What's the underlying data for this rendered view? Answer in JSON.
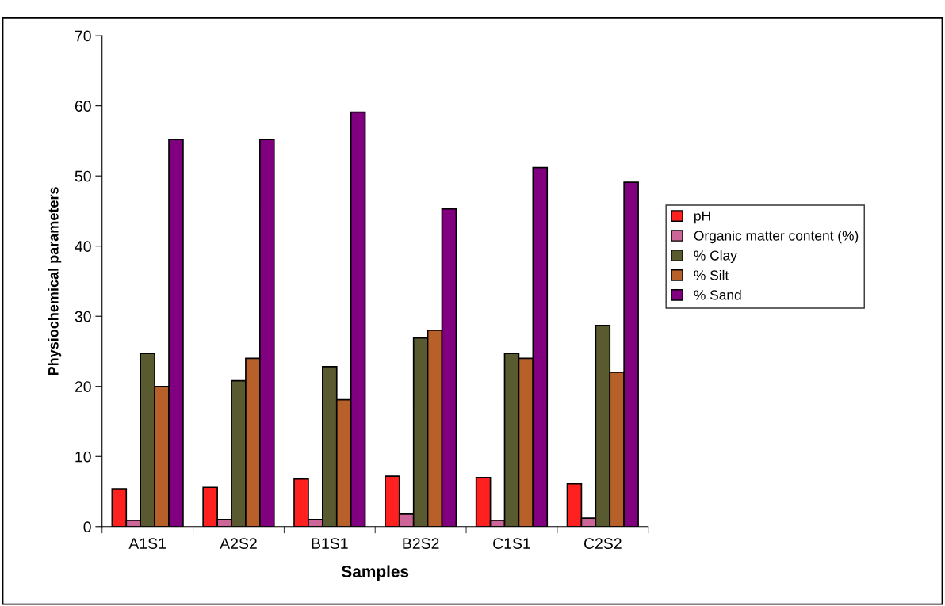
{
  "chart_data": {
    "type": "bar",
    "xlabel": "Samples",
    "ylabel": "Physiochemical parameters",
    "categories": [
      "A1S1",
      "A2S2",
      "B1S1",
      "B2S2",
      "C1S1",
      "C2S2"
    ],
    "series": [
      {
        "name": "pH",
        "color": "#ff2020",
        "values": [
          5.4,
          5.6,
          6.8,
          7.2,
          7.0,
          6.1
        ]
      },
      {
        "name": "Organic matter content (%)",
        "color": "#cc6699",
        "values": [
          0.9,
          1.0,
          1.0,
          1.8,
          0.9,
          1.2
        ]
      },
      {
        "name": "% Clay",
        "color": "#5a5a30",
        "values": [
          24.7,
          20.8,
          22.8,
          26.9,
          24.7,
          28.7
        ]
      },
      {
        "name": "% Silt",
        "color": "#b8602a",
        "values": [
          20.0,
          24.0,
          18.1,
          28.0,
          24.0,
          22.0
        ]
      },
      {
        "name": "% Sand",
        "color": "#800080",
        "values": [
          55.2,
          55.2,
          59.1,
          45.3,
          51.2,
          49.1
        ]
      }
    ],
    "ylim": [
      0,
      70
    ],
    "yticks": [
      0,
      10,
      20,
      30,
      40,
      50,
      60,
      70
    ],
    "grid": false,
    "legend": "right"
  }
}
